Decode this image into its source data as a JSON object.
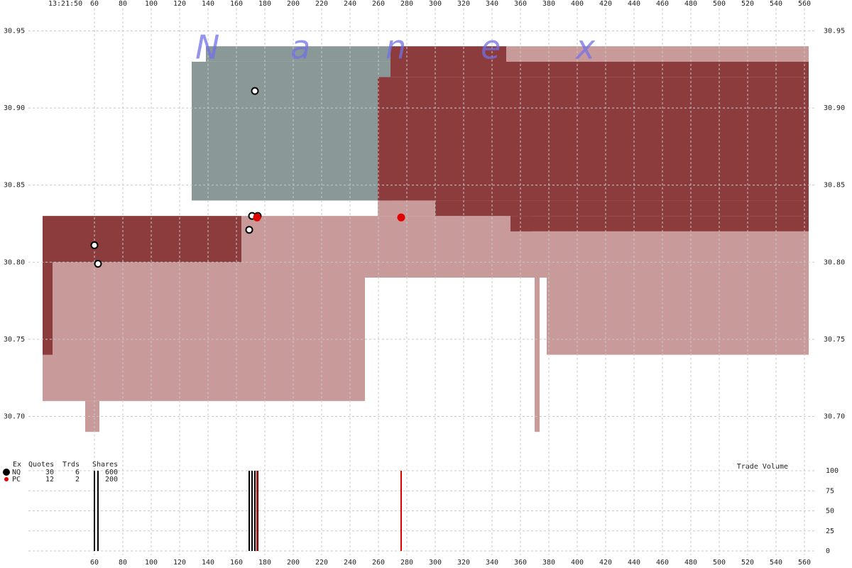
{
  "header": {
    "time": "13:21:50",
    "watermark": [
      "N",
      "a",
      "n",
      "e",
      "x"
    ]
  },
  "chart_data": [
    {
      "type": "range",
      "xlim": [
        13.5,
        567
      ],
      "ylim": [
        30.68,
        30.97
      ],
      "xticks": [
        60,
        80,
        100,
        120,
        140,
        160,
        180,
        200,
        220,
        240,
        260,
        280,
        300,
        320,
        340,
        360,
        380,
        400,
        420,
        440,
        460,
        480,
        500,
        520,
        540,
        560
      ],
      "yticks": [
        30.95,
        {
          "value": 30.9,
          "label": "30.90"
        },
        30.85,
        {
          "value": 30.8,
          "label": "30.80"
        },
        30.75,
        {
          "value": 30.7,
          "label": "30.70"
        }
      ],
      "grid": true,
      "regions": [
        {
          "color": "#c99a9a",
          "rects": [
            [
              23.5,
              163.5,
              30.71,
              30.8
            ],
            [
              53.5,
              63.5,
              30.69,
              30.71
            ],
            [
              163.5,
              250.5,
              30.71,
              30.83
            ],
            [
              250.5,
              368.5,
              30.79,
              30.83
            ],
            [
              259.5,
              300,
              30.83,
              30.84
            ],
            [
              368.5,
              378.5,
              30.79,
              30.82
            ],
            [
              370,
              373.5,
              30.69,
              30.79
            ],
            [
              378.5,
              563,
              30.74,
              30.82
            ],
            [
              350,
              563,
              30.93,
              30.94
            ]
          ]
        },
        {
          "color": "#8a9898",
          "rects": [
            [
              128.5,
              268.5,
              30.84,
              30.93
            ],
            [
              138.5,
              268.5,
              30.93,
              30.94
            ]
          ]
        },
        {
          "color": "#8c3c3c",
          "rects": [
            [
              23.5,
              163.5,
              30.8,
              30.83
            ],
            [
              23.5,
              30.5,
              30.74,
              30.8
            ],
            [
              259.5,
              563,
              30.84,
              30.92
            ],
            [
              268.5,
              350,
              30.92,
              30.94
            ],
            [
              350,
              563,
              30.92,
              30.93
            ],
            [
              300,
              563,
              30.83,
              30.84
            ],
            [
              353,
              563,
              30.82,
              30.83
            ]
          ]
        }
      ]
    },
    {
      "type": "bar",
      "title": "Trade Volume",
      "ylim": [
        0,
        100
      ],
      "yticks": [
        0,
        25,
        50,
        75,
        100
      ],
      "series": [
        {
          "name": "NQ",
          "color": "#000000",
          "x": [
            60,
            62.5,
            169,
            171,
            173,
            175
          ],
          "price": [
            30.811,
            30.799,
            30.821,
            30.83,
            30.911,
            30.83
          ],
          "values": [
            100,
            100,
            100,
            100,
            100,
            100
          ]
        },
        {
          "name": "PC",
          "color": "#e00000",
          "x": [
            174.5,
            276
          ],
          "price": [
            30.829,
            30.829
          ],
          "values": [
            100,
            100
          ]
        }
      ]
    }
  ],
  "legend": {
    "headers": [
      "Ex",
      "Quotes",
      "Trds",
      "Shares"
    ],
    "rows": [
      [
        30,
        6,
        600
      ],
      [
        12,
        2,
        200
      ]
    ]
  }
}
